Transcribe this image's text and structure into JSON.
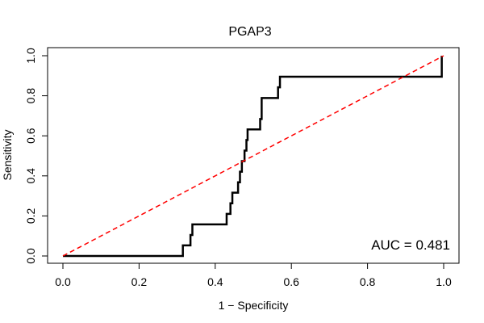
{
  "chart_data": {
    "type": "line",
    "title": "PGAP3",
    "xlabel": "1 − Specificity",
    "ylabel": "Sensitivity",
    "xlim": [
      0,
      1
    ],
    "ylim": [
      0,
      1
    ],
    "x_ticks": [
      0,
      0.2,
      0.4,
      0.6,
      0.8,
      1
    ],
    "y_ticks": [
      0,
      0.2,
      0.4,
      0.6,
      0.8,
      1
    ],
    "x_tick_labels": [
      "0.0",
      "0.2",
      "0.4",
      "0.6",
      "0.8",
      "1.0"
    ],
    "y_tick_labels": [
      "0.0",
      "0.2",
      "0.4",
      "0.6",
      "0.8",
      "1.0"
    ],
    "annotation": "AUC = 0.481",
    "series": [
      {
        "name": "ROC curve",
        "color": "#000000",
        "style": "solid",
        "x": [
          0,
          0.315,
          0.315,
          0.335,
          0.335,
          0.34,
          0.34,
          0.43,
          0.43,
          0.44,
          0.44,
          0.445,
          0.445,
          0.46,
          0.46,
          0.465,
          0.465,
          0.47,
          0.47,
          0.477,
          0.477,
          0.482,
          0.482,
          0.485,
          0.485,
          0.518,
          0.518,
          0.522,
          0.522,
          0.565,
          0.565,
          0.57,
          0.57,
          0.995,
          0.995
        ],
        "y": [
          0,
          0,
          0.053,
          0.053,
          0.105,
          0.105,
          0.158,
          0.158,
          0.21,
          0.21,
          0.263,
          0.263,
          0.316,
          0.316,
          0.368,
          0.368,
          0.421,
          0.421,
          0.474,
          0.474,
          0.526,
          0.526,
          0.579,
          0.579,
          0.632,
          0.632,
          0.684,
          0.684,
          0.789,
          0.789,
          0.842,
          0.842,
          0.895,
          0.895,
          1.0
        ]
      },
      {
        "name": "Diagonal reference",
        "color": "#ff0000",
        "style": "dashed",
        "x": [
          0,
          1
        ],
        "y": [
          0,
          1
        ]
      }
    ]
  }
}
